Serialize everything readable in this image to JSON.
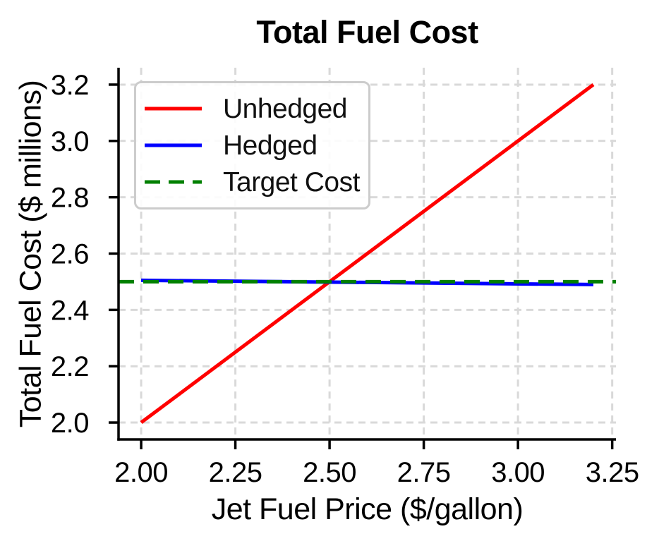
{
  "title": "Total Fuel Cost",
  "chart_data": {
    "type": "line",
    "title": "Total Fuel Cost",
    "xlabel": "Jet Fuel Price ($/gallon)",
    "ylabel": "Total Fuel Cost ($ millions)",
    "xlim": [
      1.94,
      3.26
    ],
    "ylim": [
      1.94,
      3.26
    ],
    "x_ticks": [
      2.0,
      2.25,
      2.5,
      2.75,
      3.0,
      3.25
    ],
    "x_tick_labels": [
      "2.00",
      "2.25",
      "2.50",
      "2.75",
      "3.00",
      "3.25"
    ],
    "y_ticks": [
      2.0,
      2.2,
      2.4,
      2.6,
      2.8,
      3.0,
      3.2
    ],
    "y_tick_labels": [
      "2.0",
      "2.2",
      "2.4",
      "2.6",
      "2.8",
      "3.0",
      "3.2"
    ],
    "grid": true,
    "grid_style": "dashed",
    "legend_position": "upper-left",
    "series": [
      {
        "name": "Unhedged",
        "color": "#ff0000",
        "style": "solid",
        "x": [
          2.0,
          3.2
        ],
        "y": [
          2.0,
          3.2
        ]
      },
      {
        "name": "Hedged",
        "color": "#0000ff",
        "style": "solid",
        "x": [
          2.0,
          3.2
        ],
        "y": [
          2.505,
          2.49
        ]
      },
      {
        "name": "Target Cost",
        "color": "#008000",
        "style": "dashed",
        "x": [
          1.94,
          3.26
        ],
        "y": [
          2.5,
          2.5
        ]
      }
    ]
  },
  "colors": {
    "grid": "#d9d9d9",
    "spine": "#000000",
    "text": "#000000",
    "legend_border": "#cccccc"
  }
}
